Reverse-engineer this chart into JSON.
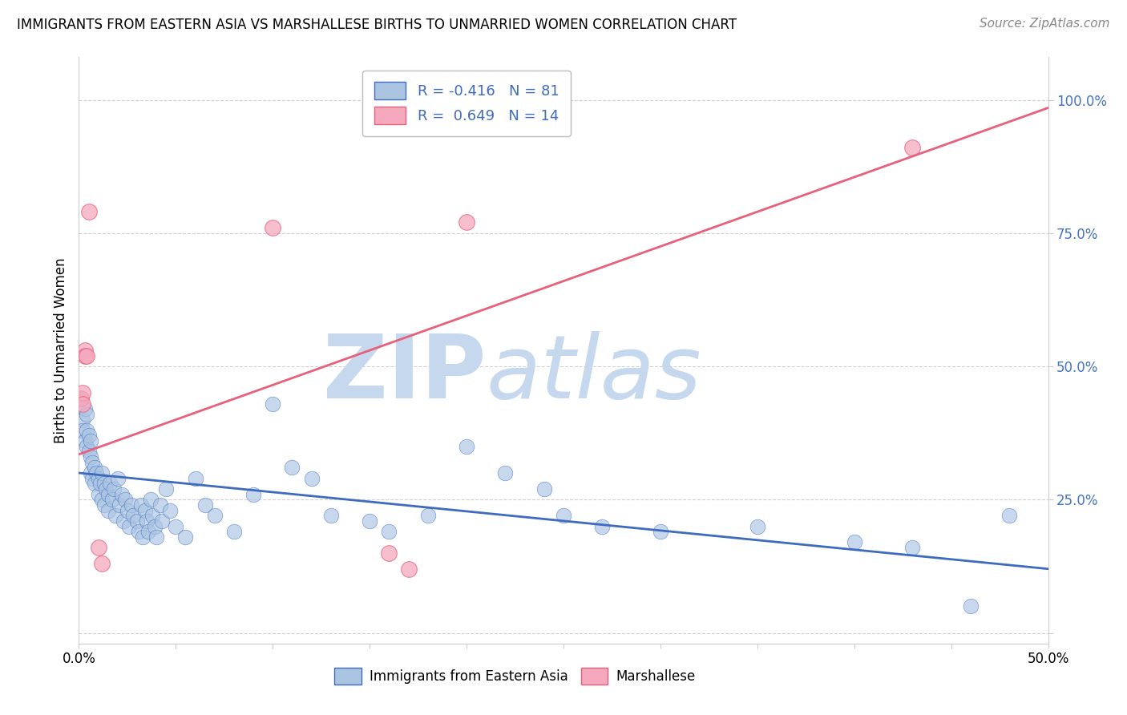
{
  "title": "IMMIGRANTS FROM EASTERN ASIA VS MARSHALLESE BIRTHS TO UNMARRIED WOMEN CORRELATION CHART",
  "source": "Source: ZipAtlas.com",
  "ylabel": "Births to Unmarried Women",
  "xlim": [
    0.0,
    0.5
  ],
  "ylim": [
    -0.02,
    1.08
  ],
  "legend_blue_r": "-0.416",
  "legend_blue_n": "81",
  "legend_pink_r": "0.649",
  "legend_pink_n": "14",
  "blue_color": "#aac4e2",
  "blue_line_color": "#3f6bbf",
  "pink_color": "#f5a8be",
  "pink_line_color": "#e8607a",
  "blue_scatter": [
    [
      0.001,
      0.44
    ],
    [
      0.002,
      0.4
    ],
    [
      0.002,
      0.38
    ],
    [
      0.003,
      0.42
    ],
    [
      0.003,
      0.36
    ],
    [
      0.004,
      0.41
    ],
    [
      0.004,
      0.38
    ],
    [
      0.004,
      0.35
    ],
    [
      0.005,
      0.37
    ],
    [
      0.005,
      0.34
    ],
    [
      0.006,
      0.36
    ],
    [
      0.006,
      0.33
    ],
    [
      0.006,
      0.3
    ],
    [
      0.007,
      0.32
    ],
    [
      0.007,
      0.29
    ],
    [
      0.008,
      0.31
    ],
    [
      0.008,
      0.28
    ],
    [
      0.009,
      0.3
    ],
    [
      0.01,
      0.29
    ],
    [
      0.01,
      0.26
    ],
    [
      0.011,
      0.28
    ],
    [
      0.012,
      0.3
    ],
    [
      0.012,
      0.25
    ],
    [
      0.013,
      0.28
    ],
    [
      0.013,
      0.24
    ],
    [
      0.014,
      0.27
    ],
    [
      0.015,
      0.26
    ],
    [
      0.015,
      0.23
    ],
    [
      0.016,
      0.28
    ],
    [
      0.017,
      0.25
    ],
    [
      0.018,
      0.27
    ],
    [
      0.019,
      0.22
    ],
    [
      0.02,
      0.29
    ],
    [
      0.021,
      0.24
    ],
    [
      0.022,
      0.26
    ],
    [
      0.023,
      0.21
    ],
    [
      0.024,
      0.25
    ],
    [
      0.025,
      0.23
    ],
    [
      0.026,
      0.2
    ],
    [
      0.027,
      0.24
    ],
    [
      0.028,
      0.22
    ],
    [
      0.03,
      0.21
    ],
    [
      0.031,
      0.19
    ],
    [
      0.032,
      0.24
    ],
    [
      0.033,
      0.18
    ],
    [
      0.034,
      0.23
    ],
    [
      0.035,
      0.21
    ],
    [
      0.036,
      0.19
    ],
    [
      0.037,
      0.25
    ],
    [
      0.038,
      0.22
    ],
    [
      0.039,
      0.2
    ],
    [
      0.04,
      0.18
    ],
    [
      0.042,
      0.24
    ],
    [
      0.043,
      0.21
    ],
    [
      0.045,
      0.27
    ],
    [
      0.047,
      0.23
    ],
    [
      0.05,
      0.2
    ],
    [
      0.055,
      0.18
    ],
    [
      0.06,
      0.29
    ],
    [
      0.065,
      0.24
    ],
    [
      0.07,
      0.22
    ],
    [
      0.08,
      0.19
    ],
    [
      0.09,
      0.26
    ],
    [
      0.1,
      0.43
    ],
    [
      0.11,
      0.31
    ],
    [
      0.12,
      0.29
    ],
    [
      0.13,
      0.22
    ],
    [
      0.15,
      0.21
    ],
    [
      0.16,
      0.19
    ],
    [
      0.18,
      0.22
    ],
    [
      0.2,
      0.35
    ],
    [
      0.22,
      0.3
    ],
    [
      0.24,
      0.27
    ],
    [
      0.25,
      0.22
    ],
    [
      0.27,
      0.2
    ],
    [
      0.3,
      0.19
    ],
    [
      0.35,
      0.2
    ],
    [
      0.4,
      0.17
    ],
    [
      0.43,
      0.16
    ],
    [
      0.46,
      0.05
    ],
    [
      0.48,
      0.22
    ]
  ],
  "pink_scatter": [
    [
      0.001,
      0.44
    ],
    [
      0.002,
      0.45
    ],
    [
      0.002,
      0.43
    ],
    [
      0.003,
      0.53
    ],
    [
      0.003,
      0.52
    ],
    [
      0.004,
      0.52
    ],
    [
      0.005,
      0.79
    ],
    [
      0.01,
      0.16
    ],
    [
      0.012,
      0.13
    ],
    [
      0.1,
      0.76
    ],
    [
      0.16,
      0.15
    ],
    [
      0.17,
      0.12
    ],
    [
      0.2,
      0.77
    ],
    [
      0.43,
      0.91
    ]
  ],
  "blue_line_intercept": 0.3,
  "blue_line_slope": -0.36,
  "pink_line_intercept": 0.335,
  "pink_line_slope": 1.3,
  "watermark_zip": "ZIP",
  "watermark_atlas": "atlas",
  "watermark_color": "#c5d8ed",
  "background_color": "#ffffff",
  "grid_color": "#d0d0d0",
  "spine_color": "#cccccc"
}
